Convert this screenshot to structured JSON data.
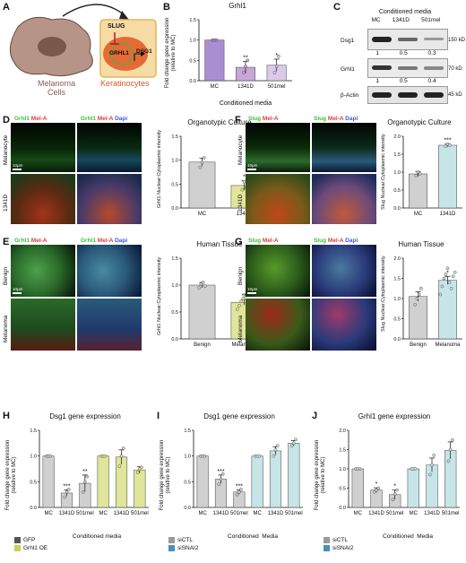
{
  "colors": {
    "mc": "#a98fd1",
    "d1341": "#c9a5d8",
    "d501": "#dac9e8",
    "grey": "#d0d0d0",
    "green": "#dfe59a",
    "blue": "#4b90b8",
    "lightblue": "#c7e4e6",
    "star": "#111111"
  },
  "panelA": {
    "label": "A",
    "melanoma_line1": "Melanoma",
    "melanoma_line2": "Cells",
    "keratinocytes": "Keratinocytes",
    "slug": "SLUG",
    "grhl1": "GRHL1",
    "dsg1": "DSG1"
  },
  "panelB": {
    "label": "B",
    "title": "Grhl1",
    "ylabel_line1": "Fold change gene expression",
    "ylabel_line2": "(relative to MC)",
    "xlabel": "Conditioned media"
  },
  "panelC": {
    "label": "C",
    "header": "Conditioned media",
    "cols": [
      "MC",
      "1341D",
      "501mel"
    ],
    "rows": [
      {
        "name": "Dsg1",
        "kd": "150 kD",
        "vals": [
          "1",
          "0.5",
          "0.3"
        ]
      },
      {
        "name": "Grhl1",
        "kd": "70 kD",
        "vals": [
          "1",
          "0.5",
          "0.4"
        ]
      },
      {
        "name": "β-Actin",
        "kd": "45 kD",
        "vals": [
          "",
          "",
          ""
        ]
      }
    ]
  },
  "panelD": {
    "label": "D",
    "ch_grhl1": "Grhl1",
    "ch_mela": "Mel-A",
    "ch_dapi": "Dapi",
    "row1": "Melanocyte",
    "row2": "1341D",
    "scale": "10μm",
    "title": "Organotypic Culture",
    "ylabel": "Grhl1 Nuclear:Cytoplasmic intensity"
  },
  "panelF": {
    "label": "F",
    "ch_slug": "Slug",
    "ch_mela": "Mel-A",
    "ch_dapi": "Dapi",
    "row1": "Melanocyte",
    "row2": "1341D",
    "scale": "10μm",
    "title": "Organotypic Culture",
    "ylabel": "Slug Nuclear:Cytoplasmic intensity"
  },
  "panelE": {
    "label": "E",
    "ch_grhl1": "Grhl1",
    "ch_mela": "Mel-A",
    "ch_dapi": "Dapi",
    "row1": "Benign",
    "row2": "Melanoma",
    "scale": "10μm",
    "title": "Human Tissue",
    "ylabel": "Grhl1 Nuclear:Cytoplasmic intensity"
  },
  "panelG": {
    "label": "G",
    "ch_slug": "Slug",
    "ch_mela": "Mel-A",
    "ch_dapi": "Dapi",
    "row1": "Benign",
    "row2": "Melanoma",
    "scale": "10μm",
    "title": "Human Tissue",
    "ylabel": "Slug Nuclear:Cytoplasmic intensity"
  },
  "panelH": {
    "label": "H",
    "title": "Dsg1 gene expression",
    "ylabel_line1": "Fold change gene expression",
    "ylabel_line2": "(relative to MC)",
    "xlabel": "Conditioned media",
    "legend": [
      "GFP",
      "Grhl1 OE"
    ]
  },
  "panelI": {
    "label": "I",
    "title": "Dsg1 gene expression",
    "ylabel_line1": "Fold change gene expression",
    "ylabel_line2": "(relative to MC)",
    "xlabel": "Conditioned  Media",
    "legend": [
      "siCTL",
      "siSNAI2"
    ]
  },
  "panelJ": {
    "label": "J",
    "title": "Grhl1 gene expression",
    "ylabel_line1": "Fold change gene expression",
    "ylabel_line2": "(relative to MC)",
    "xlabel": "Conditioned  Media",
    "legend": [
      "siCTL",
      "siSNAI2"
    ]
  },
  "chart_data": [
    {
      "id": "B",
      "type": "bar",
      "categories": [
        "MC",
        "1341D",
        "501mel"
      ],
      "values": [
        1.0,
        0.33,
        0.38
      ],
      "errors": [
        0,
        0.14,
        0.15
      ],
      "points": [
        [
          1,
          1,
          1
        ],
        [
          0.2,
          0.35,
          0.5
        ],
        [
          0.2,
          0.35,
          0.6
        ]
      ],
      "stars": [
        "",
        "**",
        "*"
      ],
      "ylim": [
        0,
        1.5
      ],
      "yticks": [
        "0.0",
        "0.5",
        "1.0",
        "1.5"
      ],
      "colors": [
        "mc",
        "d1341",
        "d501"
      ]
    },
    {
      "id": "D",
      "type": "bar",
      "categories": [
        "MC",
        "1341D"
      ],
      "values": [
        0.96,
        0.47
      ],
      "errors": [
        0.08,
        0.1
      ],
      "points": [
        [
          0.85,
          0.95,
          1.05
        ],
        [
          0.38,
          0.55,
          0.42
        ]
      ],
      "stars": [
        "",
        "*"
      ],
      "ylim": [
        0,
        1.5
      ],
      "yticks": [
        "0.0",
        "0.5",
        "1.0",
        "1.5"
      ],
      "colors": [
        "grey",
        "green"
      ]
    },
    {
      "id": "F",
      "type": "bar",
      "categories": [
        "MC",
        "1341D"
      ],
      "values": [
        0.95,
        1.75
      ],
      "errors": [
        0.07,
        0.04
      ],
      "points": [
        [
          0.9,
          1.0,
          0.95
        ],
        [
          1.72,
          1.78,
          1.75
        ]
      ],
      "stars": [
        "",
        "***"
      ],
      "ylim": [
        0,
        2.0
      ],
      "yticks": [
        "0.0",
        "0.5",
        "1.0",
        "1.5",
        "2.0"
      ],
      "colors": [
        "grey",
        "lightblue"
      ]
    },
    {
      "id": "E",
      "type": "bar",
      "categories": [
        "Benign",
        "Melanoma"
      ],
      "values": [
        1.0,
        0.68
      ],
      "errors": [
        0.05,
        0.05
      ],
      "points": [
        [
          0.95,
          1.02,
          1.05,
          0.98
        ],
        [
          0.55,
          0.62,
          0.7,
          0.75,
          0.8,
          0.65,
          0.6,
          0.72
        ]
      ],
      "stars": [
        "",
        "**"
      ],
      "ylim": [
        0,
        1.5
      ],
      "yticks": [
        "0.0",
        "0.5",
        "1.0",
        "1.5"
      ],
      "colors": [
        "grey",
        "green"
      ]
    },
    {
      "id": "G",
      "type": "bar",
      "categories": [
        "Benign",
        "Melanoma"
      ],
      "values": [
        1.05,
        1.45
      ],
      "errors": [
        0.12,
        0.1
      ],
      "points": [
        [
          0.85,
          1.0,
          1.1,
          1.25
        ],
        [
          1.1,
          1.3,
          1.5,
          1.6,
          1.75,
          1.4,
          1.25,
          1.55,
          1.65
        ]
      ],
      "stars": [
        "",
        "*"
      ],
      "ylim": [
        0,
        2.0
      ],
      "yticks": [
        "0.0",
        "0.5",
        "1.0",
        "1.5",
        "2.0"
      ],
      "colors": [
        "grey",
        "lightblue"
      ]
    },
    {
      "id": "H",
      "type": "bar",
      "categories": [
        "MC",
        "1341D",
        "501mel",
        "MC",
        "1341D",
        "501mel"
      ],
      "values": [
        1.0,
        0.28,
        0.47,
        1.0,
        0.98,
        0.73
      ],
      "errors": [
        0,
        0.06,
        0.16,
        0,
        0.14,
        0.06
      ],
      "points": [
        [
          1,
          1,
          1
        ],
        [
          0.2,
          0.3,
          0.35
        ],
        [
          0.3,
          0.5,
          0.6
        ],
        [
          1,
          1,
          1
        ],
        [
          0.8,
          1.0,
          1.15
        ],
        [
          0.68,
          0.75,
          0.78
        ]
      ],
      "stars": [
        "",
        "***",
        "**",
        "",
        "",
        ""
      ],
      "ylim": [
        0,
        1.5
      ],
      "yticks": [
        "0.0",
        "0.5",
        "1.0",
        "1.5"
      ],
      "colors": [
        "grey",
        "grey",
        "grey",
        "green",
        "green",
        "green"
      ],
      "series": [
        {
          "name": "GFP"
        },
        {
          "name": "Grhl1 OE"
        }
      ]
    },
    {
      "id": "I",
      "type": "bar",
      "categories": [
        "MC",
        "1341D",
        "501mel",
        "MC",
        "1341D",
        "501mel"
      ],
      "values": [
        1.0,
        0.55,
        0.3,
        1.0,
        1.1,
        1.25
      ],
      "errors": [
        0,
        0.08,
        0.04,
        0,
        0.08,
        0.05
      ],
      "points": [
        [
          1,
          1,
          1
        ],
        [
          0.45,
          0.55,
          0.65
        ],
        [
          0.25,
          0.3,
          0.35
        ],
        [
          1,
          1,
          1
        ],
        [
          1.0,
          1.12,
          1.2
        ],
        [
          1.2,
          1.25,
          1.32
        ]
      ],
      "stars": [
        "",
        "***",
        "***",
        "",
        "",
        ""
      ],
      "ylim": [
        0,
        1.5
      ],
      "yticks": [
        "0.0",
        "0.5",
        "1.0",
        "1.5"
      ],
      "colors": [
        "grey",
        "grey",
        "grey",
        "lightblue",
        "lightblue",
        "lightblue"
      ],
      "series": [
        {
          "name": "siCTL"
        },
        {
          "name": "siSNAI2"
        }
      ]
    },
    {
      "id": "J",
      "type": "bar",
      "categories": [
        "MC",
        "1341D",
        "501mel",
        "MC",
        "1341D",
        "501mel"
      ],
      "values": [
        1.0,
        0.45,
        0.33,
        1.0,
        1.1,
        1.48
      ],
      "errors": [
        0,
        0.06,
        0.12,
        0,
        0.18,
        0.22
      ],
      "points": [
        [
          1,
          1,
          1
        ],
        [
          0.4,
          0.45,
          0.5
        ],
        [
          0.2,
          0.35,
          0.45
        ],
        [
          1,
          1,
          1
        ],
        [
          0.85,
          1.1,
          1.35
        ],
        [
          1.2,
          1.5,
          1.75
        ]
      ],
      "stars": [
        "",
        "*",
        "*",
        "",
        "",
        ""
      ],
      "ylim": [
        0,
        2.0
      ],
      "yticks": [
        "0.0",
        "0.5",
        "1.0",
        "1.5",
        "2.0"
      ],
      "colors": [
        "grey",
        "grey",
        "grey",
        "lightblue",
        "lightblue",
        "lightblue"
      ],
      "series": [
        {
          "name": "siCTL"
        },
        {
          "name": "siSNAI2"
        }
      ]
    }
  ]
}
